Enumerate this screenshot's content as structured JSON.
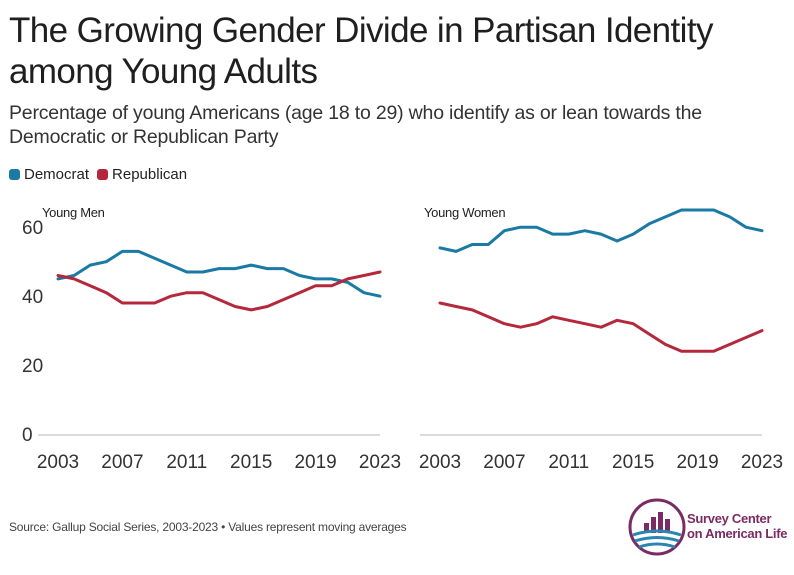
{
  "header": {
    "title": "The Growing Gender Divide in Partisan Identity among Young Adults",
    "subtitle": "Percentage of young Americans (age 18 to 29) who identify as or lean towards the Democratic or Republican Party"
  },
  "legend": {
    "items": [
      {
        "label": "Democrat",
        "color": "#1a7aa3"
      },
      {
        "label": "Republican",
        "color": "#b5283c"
      }
    ]
  },
  "footer": {
    "source": "Source: Gallup Social Series, 2003-2023 • Values represent moving averages"
  },
  "logo": {
    "line1": "Survey Center",
    "line2": "on American Life"
  },
  "chart_data": [
    {
      "type": "line",
      "title": "Young Men",
      "x": [
        2003,
        2004,
        2005,
        2006,
        2007,
        2008,
        2009,
        2010,
        2011,
        2012,
        2013,
        2014,
        2015,
        2016,
        2017,
        2018,
        2019,
        2020,
        2021,
        2022,
        2023
      ],
      "series": [
        {
          "name": "Democrat",
          "color": "#1a7aa3",
          "values": [
            45,
            46,
            49,
            50,
            53,
            53,
            51,
            49,
            47,
            47,
            48,
            48,
            49,
            48,
            48,
            46,
            45,
            45,
            44,
            41,
            40
          ]
        },
        {
          "name": "Republican",
          "color": "#b5283c",
          "values": [
            46,
            45,
            43,
            41,
            38,
            38,
            38,
            40,
            41,
            41,
            39,
            37,
            36,
            37,
            39,
            41,
            43,
            43,
            45,
            46,
            47
          ]
        }
      ],
      "xticks": [
        "2003",
        "2007",
        "2011",
        "2015",
        "2019",
        "2023"
      ],
      "yticks": [
        "0",
        "20",
        "40",
        "60"
      ],
      "ylim": [
        0,
        65
      ]
    },
    {
      "type": "line",
      "title": "Young Women",
      "x": [
        2003,
        2004,
        2005,
        2006,
        2007,
        2008,
        2009,
        2010,
        2011,
        2012,
        2013,
        2014,
        2015,
        2016,
        2017,
        2018,
        2019,
        2020,
        2021,
        2022,
        2023
      ],
      "series": [
        {
          "name": "Democrat",
          "color": "#1a7aa3",
          "values": [
            54,
            53,
            55,
            55,
            59,
            60,
            60,
            58,
            58,
            59,
            58,
            56,
            58,
            61,
            63,
            65,
            65,
            65,
            63,
            60,
            59
          ]
        },
        {
          "name": "Republican",
          "color": "#b5283c",
          "values": [
            38,
            37,
            36,
            34,
            32,
            31,
            32,
            34,
            33,
            32,
            31,
            33,
            32,
            29,
            26,
            24,
            24,
            24,
            26,
            28,
            30
          ]
        }
      ],
      "xticks": [
        "2003",
        "2007",
        "2011",
        "2015",
        "2019",
        "2023"
      ],
      "yticks": [],
      "ylim": [
        0,
        65
      ]
    }
  ]
}
